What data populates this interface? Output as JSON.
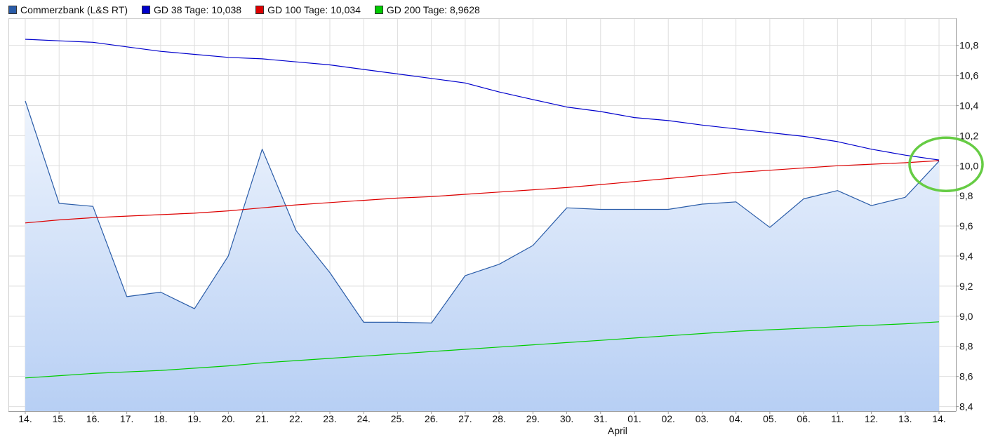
{
  "legend": [
    {
      "label": "Commerzbank (L&S RT)",
      "color": "#2a5ca8"
    },
    {
      "label": "GD 38 Tage: 10,038",
      "color": "#0000cc"
    },
    {
      "label": "GD 100 Tage: 10,034",
      "color": "#dd0000"
    },
    {
      "label": "GD 200 Tage: 8,9628",
      "color": "#00cc00"
    }
  ],
  "chart_data": {
    "type": "line",
    "x": [
      "14.",
      "15.",
      "16.",
      "17.",
      "18.",
      "19.",
      "20.",
      "21.",
      "22.",
      "23.",
      "24.",
      "25.",
      "26.",
      "27.",
      "28.",
      "29.",
      "30.",
      "31.",
      "01.",
      "02.",
      "03.",
      "04.",
      "05.",
      "06.",
      "11.",
      "12.",
      "13.",
      "14."
    ],
    "x_annotation": "April",
    "yticks": [
      8.4,
      8.6,
      8.8,
      9.0,
      9.2,
      9.4,
      9.6,
      9.8,
      10.0,
      10.2,
      10.4,
      10.6,
      10.8
    ],
    "ytick_labels": [
      "8,4",
      "8,6",
      "8,8",
      "9,0",
      "9,2",
      "9,4",
      "9,6",
      "9,8",
      "10,0",
      "10,2",
      "10,4",
      "10,6",
      "10,8"
    ],
    "ylim": [
      8.37,
      10.98
    ],
    "grid": true,
    "legend_position": "top-left",
    "highlight": {
      "type": "circle",
      "color": "#66cc44",
      "at_index": 27,
      "at_value": 10.0
    },
    "series": [
      {
        "name": "Commerzbank (L&S RT)",
        "color": "#2a5ca8",
        "fill": "area",
        "values": [
          10.43,
          9.75,
          9.73,
          9.13,
          9.16,
          9.05,
          9.4,
          10.11,
          9.57,
          9.29,
          8.96,
          8.96,
          8.955,
          9.27,
          9.345,
          9.47,
          9.72,
          9.71,
          9.71,
          9.71,
          9.745,
          9.76,
          9.59,
          9.78,
          9.835,
          9.735,
          9.79,
          10.03
        ]
      },
      {
        "name": "GD 38 Tage: 10,038",
        "color": "#0000cc",
        "values": [
          10.84,
          10.83,
          10.82,
          10.79,
          10.76,
          10.74,
          10.72,
          10.71,
          10.69,
          10.67,
          10.64,
          10.61,
          10.58,
          10.55,
          10.49,
          10.44,
          10.39,
          10.36,
          10.32,
          10.3,
          10.27,
          10.245,
          10.22,
          10.195,
          10.16,
          10.11,
          10.07,
          10.038
        ]
      },
      {
        "name": "GD 100 Tage: 10,034",
        "color": "#dd0000",
        "values": [
          9.62,
          9.64,
          9.655,
          9.665,
          9.675,
          9.685,
          9.7,
          9.72,
          9.74,
          9.755,
          9.77,
          9.785,
          9.795,
          9.81,
          9.825,
          9.84,
          9.855,
          9.875,
          9.895,
          9.915,
          9.935,
          9.955,
          9.97,
          9.985,
          10.0,
          10.01,
          10.02,
          10.034
        ]
      },
      {
        "name": "GD 200 Tage: 8,9628",
        "color": "#00cc00",
        "values": [
          8.59,
          8.605,
          8.62,
          8.63,
          8.64,
          8.655,
          8.67,
          8.69,
          8.705,
          8.72,
          8.735,
          8.75,
          8.765,
          8.78,
          8.795,
          8.81,
          8.825,
          8.84,
          8.855,
          8.87,
          8.885,
          8.9,
          8.91,
          8.92,
          8.93,
          8.94,
          8.95,
          8.9628
        ]
      }
    ]
  }
}
